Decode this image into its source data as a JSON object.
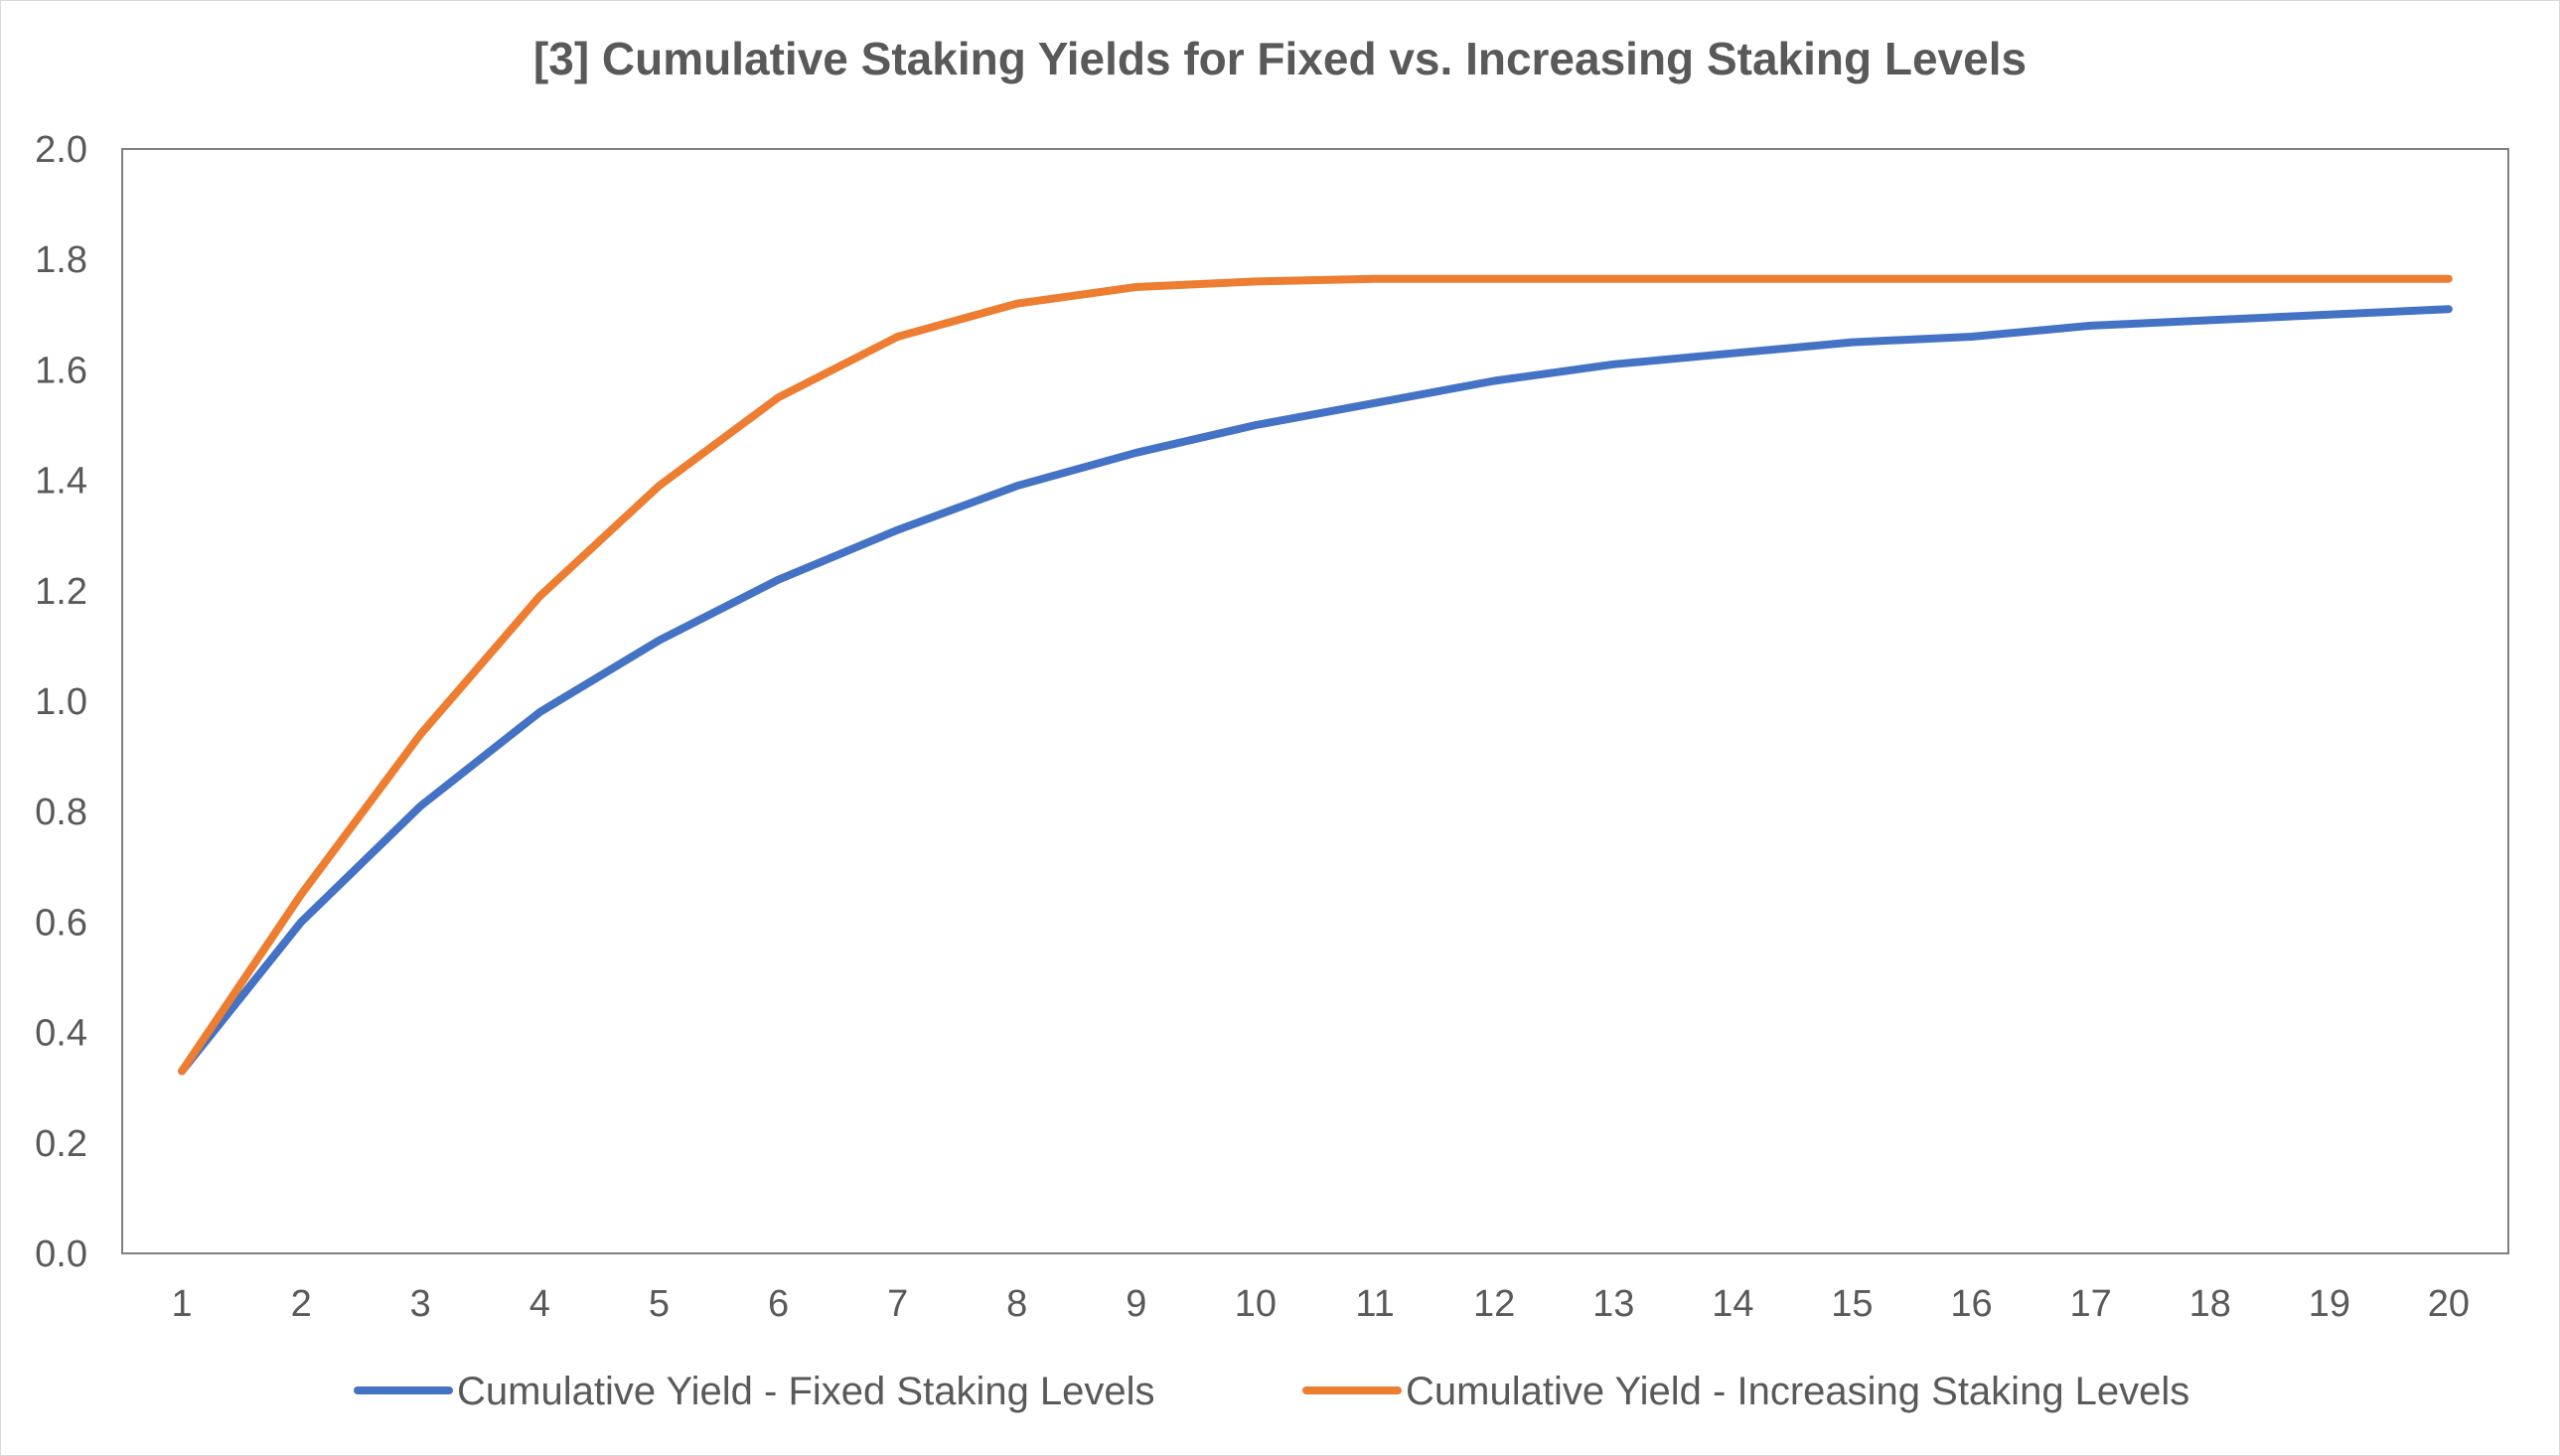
{
  "chart_data": {
    "type": "line",
    "title": "[3] Cumulative Staking Yields for Fixed vs. Increasing Staking Levels",
    "xlabel": "",
    "ylabel": "",
    "x": [
      1,
      2,
      3,
      4,
      5,
      6,
      7,
      8,
      9,
      10,
      11,
      12,
      13,
      14,
      15,
      16,
      17,
      18,
      19,
      20
    ],
    "ylim": [
      0,
      2.0
    ],
    "yticks": [
      "0.0",
      "0.2",
      "0.4",
      "0.6",
      "0.8",
      "1.0",
      "1.2",
      "1.4",
      "1.6",
      "1.8",
      "2.0"
    ],
    "grid": false,
    "legend_position": "bottom",
    "series": [
      {
        "name": "Cumulative Yield - Fixed Staking Levels",
        "color": "#4472c4",
        "values": [
          0.33,
          0.6,
          0.81,
          0.98,
          1.11,
          1.22,
          1.31,
          1.39,
          1.45,
          1.5,
          1.54,
          1.58,
          1.61,
          1.63,
          1.65,
          1.66,
          1.68,
          1.69,
          1.7,
          1.71
        ]
      },
      {
        "name": "Cumulative Yield - Increasing Staking Levels",
        "color": "#ed7d31",
        "values": [
          0.33,
          0.65,
          0.94,
          1.19,
          1.39,
          1.55,
          1.66,
          1.72,
          1.75,
          1.76,
          1.765,
          1.765,
          1.765,
          1.765,
          1.765,
          1.765,
          1.765,
          1.765,
          1.765,
          1.765
        ]
      }
    ]
  }
}
